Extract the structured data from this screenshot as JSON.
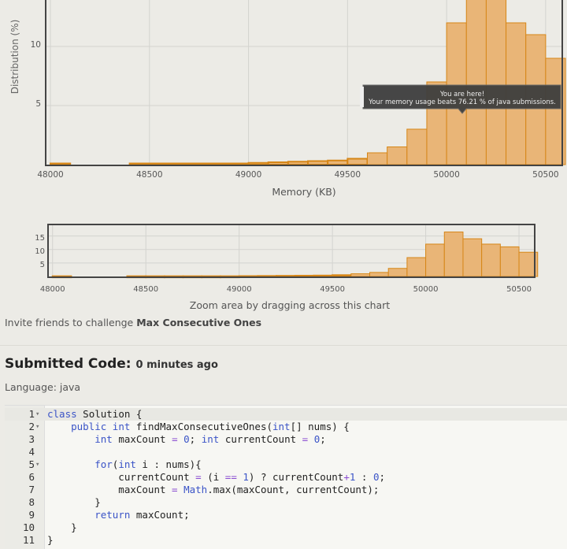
{
  "main_chart": {
    "ylabel": "Distribution (%)",
    "xlabel": "Memory (KB)",
    "x_ticks": [
      "48000",
      "48500",
      "49000",
      "49500",
      "50000",
      "50500"
    ],
    "y_ticks": [
      "5",
      "10"
    ],
    "tooltip_line1": "You are here!",
    "tooltip_line2": "Your memory usage beats 76.21 % of java submissions.",
    "colors": {
      "bar_fill": "#e9b577",
      "bar_stroke": "#d68617",
      "frame": "#444444",
      "tooltip_bg": "#3e3e3e"
    }
  },
  "zoom_chart": {
    "x_ticks": [
      "48000",
      "48500",
      "49000",
      "49500",
      "50000",
      "50500"
    ],
    "y_ticks": [
      "5",
      "10",
      "15"
    ],
    "caption": "Zoom area by dragging across this chart"
  },
  "chart_data": {
    "type": "bar",
    "bin_width": 100,
    "x": [
      48000,
      48100,
      48200,
      48300,
      48400,
      48500,
      48600,
      48700,
      48800,
      48900,
      49000,
      49100,
      49200,
      49300,
      49400,
      49500,
      49600,
      49700,
      49800,
      49900,
      50000,
      50100,
      50200,
      50300,
      50400,
      50500
    ],
    "values": [
      0.1,
      0,
      0,
      0,
      0.1,
      0.1,
      0.1,
      0.1,
      0.1,
      0.1,
      0.15,
      0.2,
      0.25,
      0.3,
      0.35,
      0.5,
      1.0,
      1.5,
      3.0,
      7.0,
      12.0,
      16.5,
      14.0,
      12.0,
      11.0,
      9.0
    ],
    "xlim": [
      47980,
      50580
    ],
    "ylim": [
      0,
      15
    ],
    "xlabel": "Memory (KB)",
    "ylabel": "Distribution (%)",
    "grid": true,
    "highlight": {
      "x": 50100,
      "text": "Your memory usage beats 76.21 % of java submissions."
    }
  },
  "invite": {
    "prefix": "Invite friends to challenge ",
    "problem": "Max Consecutive Ones"
  },
  "submission": {
    "title": "Submitted Code:",
    "time": "0 minutes ago",
    "language": "Language: java"
  },
  "code": {
    "lines": [
      {
        "num": "1",
        "fold": true,
        "active": true,
        "html": "<span class=\"kw\">class</span> Solution {"
      },
      {
        "num": "2",
        "fold": true,
        "html": "    <span class=\"kw\">public</span> <span class=\"kw\">int</span> findMaxConsecutiveOnes(<span class=\"kw\">int</span>[] nums) {"
      },
      {
        "num": "3",
        "html": "        <span class=\"kw\">int</span> maxCount <span class=\"op\">=</span> <span class=\"num\">0</span>; <span class=\"kw\">int</span> currentCount <span class=\"op\">=</span> <span class=\"num\">0</span>;"
      },
      {
        "num": "4",
        "html": ""
      },
      {
        "num": "5",
        "fold": true,
        "html": "        <span class=\"kw\">for</span>(<span class=\"kw\">int</span> i : nums){"
      },
      {
        "num": "6",
        "html": "            currentCount <span class=\"op\">=</span> (i <span class=\"op\">==</span> <span class=\"num\">1</span>) ? currentCount<span class=\"op\">+</span><span class=\"num\">1</span> : <span class=\"num\">0</span>;"
      },
      {
        "num": "7",
        "html": "            maxCount <span class=\"op\">=</span> <span class=\"kw\">Math</span>.max(maxCount, currentCount);"
      },
      {
        "num": "8",
        "html": "        }"
      },
      {
        "num": "9",
        "html": "        <span class=\"kw\">return</span> maxCount;"
      },
      {
        "num": "10",
        "html": "    }"
      },
      {
        "num": "11",
        "html": "}"
      }
    ]
  }
}
